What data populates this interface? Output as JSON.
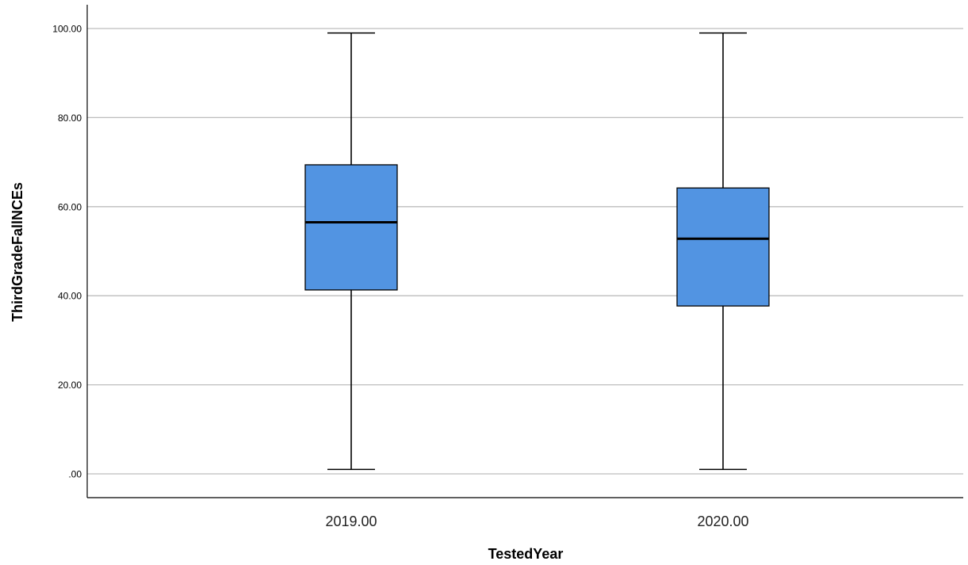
{
  "chart_data": {
    "type": "box",
    "xlabel": "TestedYear",
    "ylabel": "ThirdGradeFallNCEs",
    "ylim": [
      -5,
      105
    ],
    "y_ticks": [
      {
        "value": 0,
        "label": ".00"
      },
      {
        "value": 20,
        "label": "20.00"
      },
      {
        "value": 40,
        "label": "40.00"
      },
      {
        "value": 60,
        "label": "60.00"
      },
      {
        "value": 80,
        "label": "80.00"
      },
      {
        "value": 100,
        "label": "100.00"
      }
    ],
    "grid": true,
    "box_color": "#5294e2",
    "categories": [
      "2019.00",
      "2020.00"
    ],
    "boxes": [
      {
        "category": "2019.00",
        "min": 1,
        "q1": 41.3,
        "median": 56.5,
        "q3": 69.4,
        "max": 99
      },
      {
        "category": "2020.00",
        "min": 1,
        "q1": 37.7,
        "median": 52.8,
        "q3": 64.2,
        "max": 99
      }
    ]
  }
}
